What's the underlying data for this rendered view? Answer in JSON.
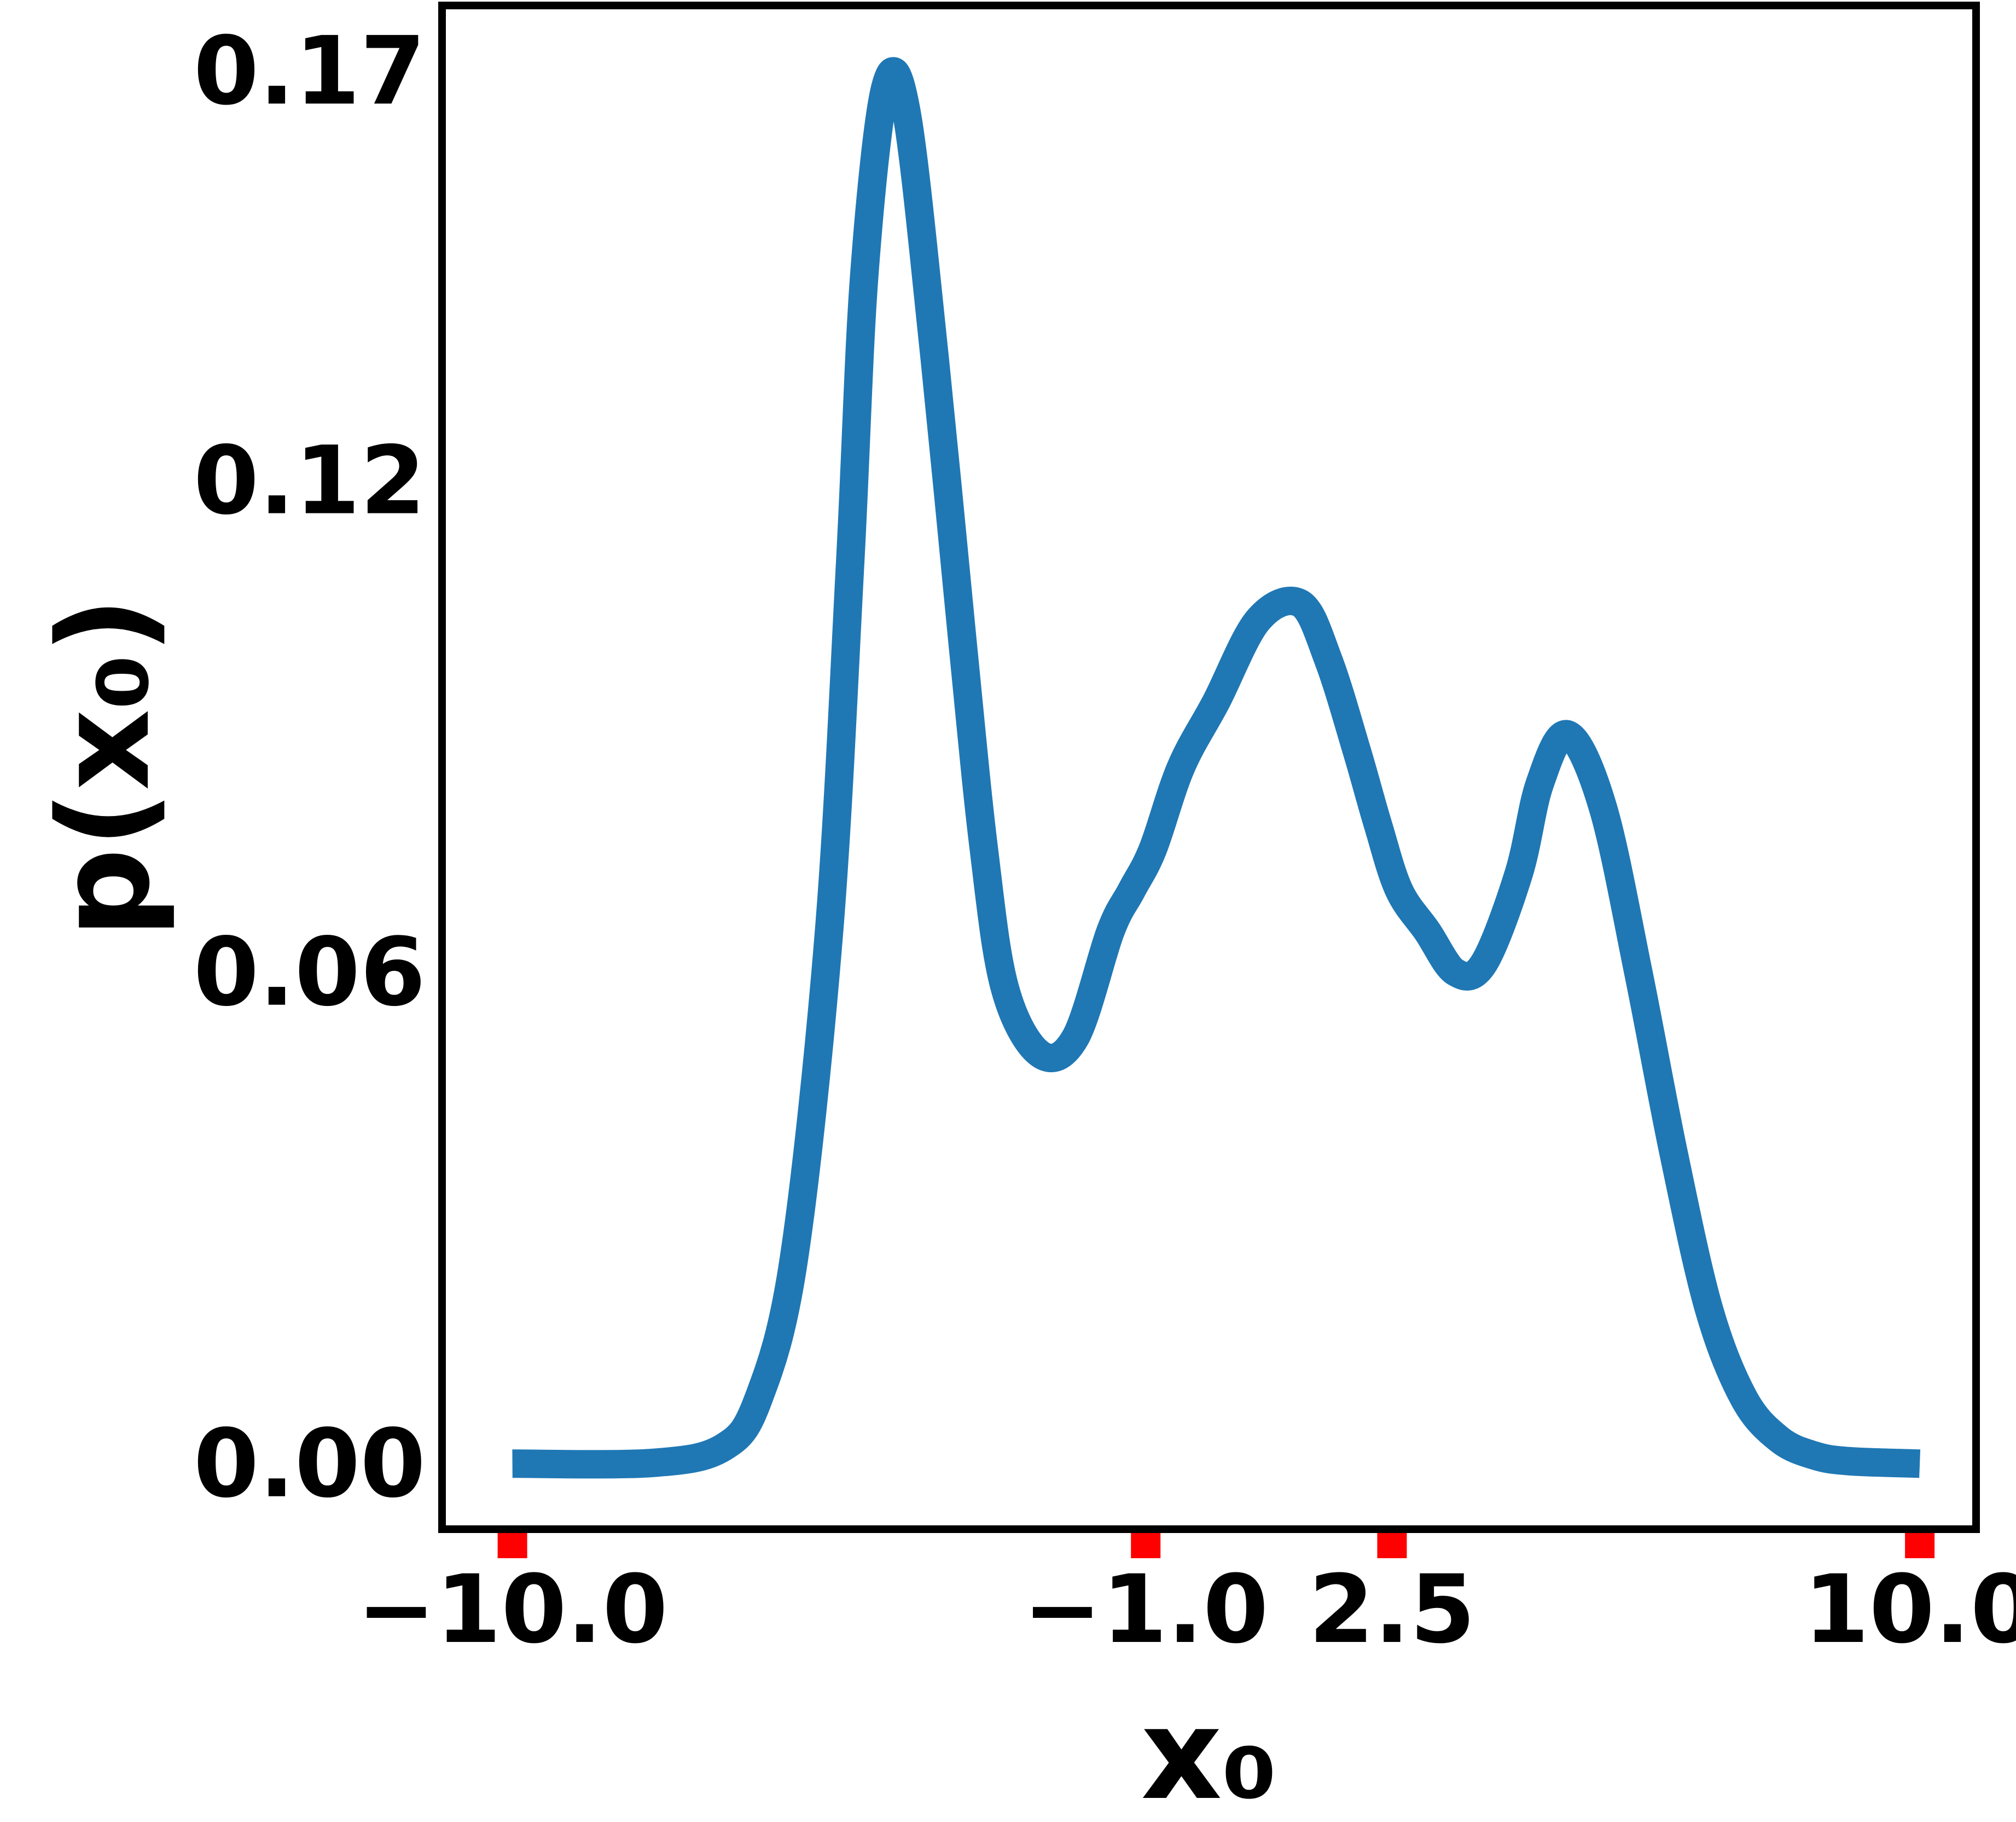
{
  "chart_data": {
    "type": "line",
    "title": "",
    "xlabel": "x₀",
    "ylabel": "p(x₀)",
    "xlim": [
      -11.0,
      10.8
    ],
    "ylim": [
      -0.008,
      0.178
    ],
    "grid": false,
    "legend": "none",
    "x_ticks": [
      {
        "value": -10.0,
        "label": "−10.0"
      },
      {
        "value": -1.0,
        "label": "−1.0"
      },
      {
        "value": 2.5,
        "label": "2.5"
      },
      {
        "value": 10.0,
        "label": "10.0"
      }
    ],
    "y_ticks": [
      {
        "value": 0.0,
        "label": "0.00"
      },
      {
        "value": 0.06,
        "label": "0.06"
      },
      {
        "value": 0.12,
        "label": "0.12"
      },
      {
        "value": 0.17,
        "label": "0.17"
      }
    ],
    "series": [
      {
        "color": "#1f77b4",
        "x": [
          -10.0,
          -8.0,
          -7.0,
          -6.5,
          -6.0,
          -5.5,
          -5.2,
          -5.0,
          -4.7,
          -4.4,
          -4.0,
          -3.6,
          -3.3,
          -3.0,
          -2.5,
          -2.0,
          -1.5,
          -1.2,
          -0.9,
          -0.5,
          0.0,
          0.6,
          1.2,
          1.6,
          2.0,
          2.3,
          2.6,
          3.0,
          3.4,
          3.8,
          4.3,
          4.6,
          5.0,
          5.5,
          6.0,
          6.5,
          7.0,
          7.5,
          8.0,
          8.5,
          9.0,
          10.0
        ],
        "y": [
          0.0,
          0.0001,
          0.002,
          0.008,
          0.025,
          0.065,
          0.11,
          0.145,
          0.168,
          0.165,
          0.135,
          0.1,
          0.075,
          0.058,
          0.05,
          0.052,
          0.065,
          0.07,
          0.075,
          0.085,
          0.093,
          0.103,
          0.105,
          0.098,
          0.087,
          0.078,
          0.07,
          0.065,
          0.06,
          0.061,
          0.072,
          0.083,
          0.089,
          0.08,
          0.06,
          0.038,
          0.019,
          0.008,
          0.003,
          0.001,
          0.0003,
          0.0
        ]
      }
    ],
    "marker_color": "#ff0000",
    "axis_color": "#000000"
  }
}
